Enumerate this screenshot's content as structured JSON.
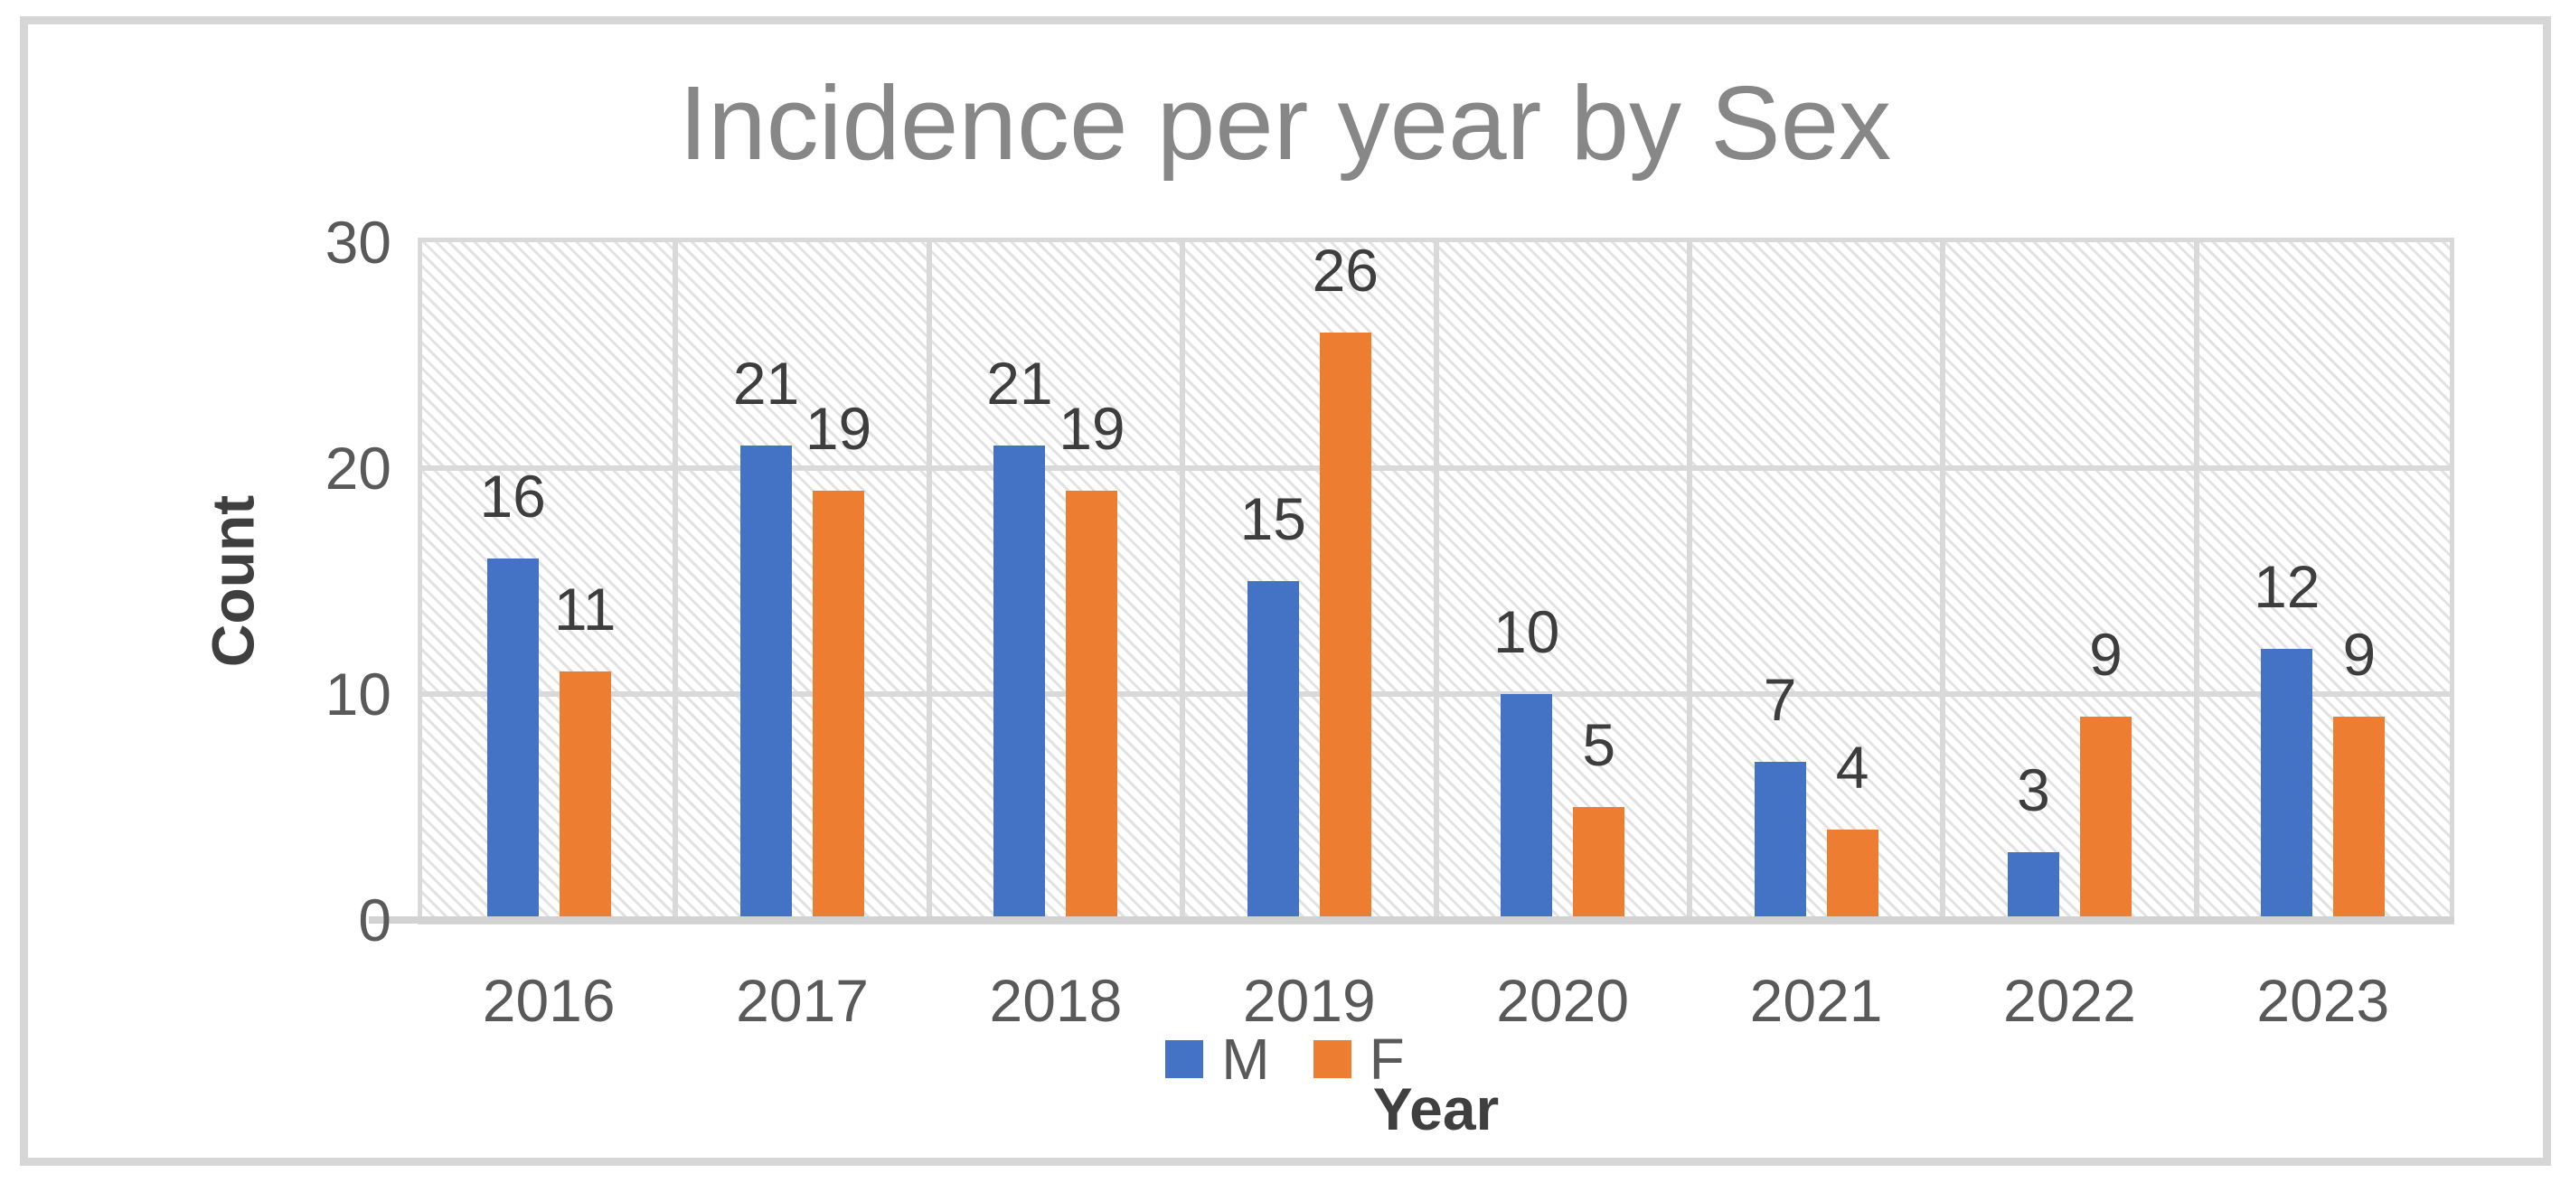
{
  "chart_data": {
    "type": "bar",
    "title": "Incidence per year by Sex",
    "xlabel": "Year",
    "ylabel": "Count",
    "categories": [
      "2016",
      "2017",
      "2018",
      "2019",
      "2020",
      "2021",
      "2022",
      "2023"
    ],
    "series": [
      {
        "name": "M",
        "color": "#4472C4",
        "values": [
          16,
          21,
          21,
          15,
          10,
          7,
          3,
          12
        ]
      },
      {
        "name": "F",
        "color": "#ED7D31",
        "values": [
          11,
          19,
          19,
          26,
          5,
          4,
          9,
          9
        ]
      }
    ],
    "y_axis": {
      "min": 0,
      "max": 30,
      "tick_step": 10,
      "ticks": [
        0,
        10,
        20,
        30
      ]
    },
    "grid": true,
    "legend_position": "bottom-center",
    "data_labels": "outside-end",
    "plot_background": "light-downward-diagonal-hatch"
  },
  "colors": {
    "series_m": "#4472C4",
    "series_f": "#ED7D31",
    "title_text": "#878787",
    "axis_tick_text": "#595959",
    "data_label_text": "#3d3d3d",
    "axis_title_text": "#3f3f3f",
    "gridline": "#d9d9d9",
    "axis_line": "#d2d2d2",
    "frame_border": "#d6d6d6",
    "hatch_line": "#e2e2e2",
    "background": "#ffffff"
  }
}
